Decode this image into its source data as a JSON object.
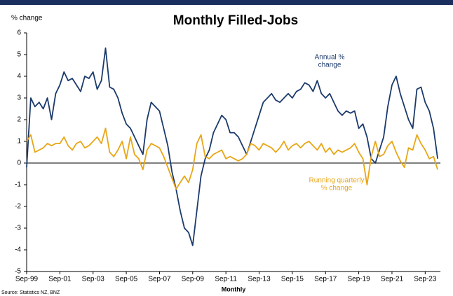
{
  "chart_data": {
    "type": "line",
    "title": "Monthly Filled-Jobs",
    "y_label": "% change",
    "x_label": "Monthly",
    "source": "Source: Statistics NZ, BNZ",
    "categories": [
      "Sep-99",
      null,
      null,
      null,
      null,
      null,
      null,
      null,
      "Sep-01",
      null,
      null,
      null,
      null,
      null,
      null,
      null,
      "Sep-03",
      null,
      null,
      null,
      null,
      null,
      null,
      null,
      "Sep-05",
      null,
      null,
      null,
      null,
      null,
      null,
      null,
      "Sep-07",
      null,
      null,
      null,
      null,
      null,
      null,
      null,
      "Sep-09",
      null,
      null,
      null,
      null,
      null,
      null,
      null,
      "Sep-11",
      null,
      null,
      null,
      null,
      null,
      null,
      null,
      "Sep-13",
      null,
      null,
      null,
      null,
      null,
      null,
      null,
      "Sep-15",
      null,
      null,
      null,
      null,
      null,
      null,
      null,
      "Sep-17",
      null,
      null,
      null,
      null,
      null,
      null,
      null,
      "Sep-19",
      null,
      null,
      null,
      null,
      null,
      null,
      null,
      "Sep-21",
      null,
      null,
      null,
      null,
      null,
      null,
      null,
      "Sep-23",
      null,
      null,
      null
    ],
    "series": [
      {
        "name": "Annual % change",
        "color": "#1b3a6b",
        "label_lines": [
          "Annual %",
          "change"
        ],
        "values": [
          -0.2,
          3.0,
          2.6,
          2.8,
          2.5,
          3.0,
          2.0,
          3.2,
          3.6,
          4.2,
          3.8,
          3.9,
          3.6,
          3.3,
          4.0,
          3.9,
          4.2,
          3.4,
          3.8,
          5.3,
          3.5,
          3.4,
          3.0,
          2.3,
          1.8,
          1.6,
          1.2,
          0.8,
          0.4,
          2.0,
          2.8,
          2.6,
          2.4,
          1.6,
          0.8,
          -0.4,
          -1.2,
          -2.2,
          -3.0,
          -3.2,
          -3.8,
          -2.2,
          -0.6,
          0.2,
          0.6,
          1.4,
          1.8,
          2.2,
          2.0,
          1.4,
          1.4,
          1.2,
          0.8,
          0.4,
          1.0,
          1.6,
          2.2,
          2.8,
          3.0,
          3.2,
          2.9,
          2.8,
          3.0,
          3.2,
          3.0,
          3.3,
          3.4,
          3.7,
          3.6,
          3.3,
          3.8,
          3.2,
          3.0,
          3.2,
          2.8,
          2.4,
          2.2,
          2.4,
          2.3,
          2.4,
          1.6,
          1.8,
          1.2,
          0.2,
          0.0,
          0.6,
          1.2,
          2.6,
          3.6,
          4.0,
          3.2,
          2.6,
          2.0,
          1.6,
          3.4,
          3.5,
          2.8,
          2.4,
          1.6,
          0.2
        ]
      },
      {
        "name": "Running quarterly % change",
        "color": "#e8a617",
        "label_lines": [
          "Running quarterly",
          "% change"
        ],
        "values": [
          1.0,
          1.3,
          0.5,
          0.6,
          0.7,
          0.9,
          0.8,
          0.9,
          0.9,
          1.2,
          0.8,
          0.6,
          0.9,
          1.0,
          0.7,
          0.8,
          1.0,
          1.2,
          0.9,
          1.6,
          0.5,
          0.3,
          0.6,
          1.0,
          0.2,
          1.2,
          0.4,
          0.2,
          -0.3,
          0.6,
          0.9,
          0.8,
          0.7,
          0.3,
          -0.2,
          -0.7,
          -1.2,
          -0.9,
          -0.6,
          -0.9,
          -0.3,
          0.9,
          1.3,
          0.3,
          0.2,
          0.4,
          0.5,
          0.6,
          0.2,
          0.3,
          0.2,
          0.1,
          0.2,
          0.4,
          0.9,
          0.8,
          0.6,
          0.9,
          0.8,
          0.7,
          0.5,
          0.7,
          1.0,
          0.6,
          0.8,
          0.9,
          0.7,
          0.9,
          1.0,
          0.8,
          0.6,
          0.9,
          0.5,
          0.7,
          0.4,
          0.6,
          0.5,
          0.6,
          0.7,
          0.9,
          0.5,
          0.2,
          -1.0,
          0.3,
          1.0,
          0.3,
          0.4,
          0.8,
          1.0,
          0.5,
          0.1,
          -0.2,
          0.7,
          0.6,
          1.3,
          0.9,
          0.6,
          0.2,
          0.3,
          -0.3
        ]
      }
    ],
    "ylim": [
      -5,
      6
    ],
    "yticks": [
      -5,
      -4,
      -3,
      -2,
      -1,
      0,
      1,
      2,
      3,
      4,
      5,
      6
    ],
    "grid": false
  }
}
